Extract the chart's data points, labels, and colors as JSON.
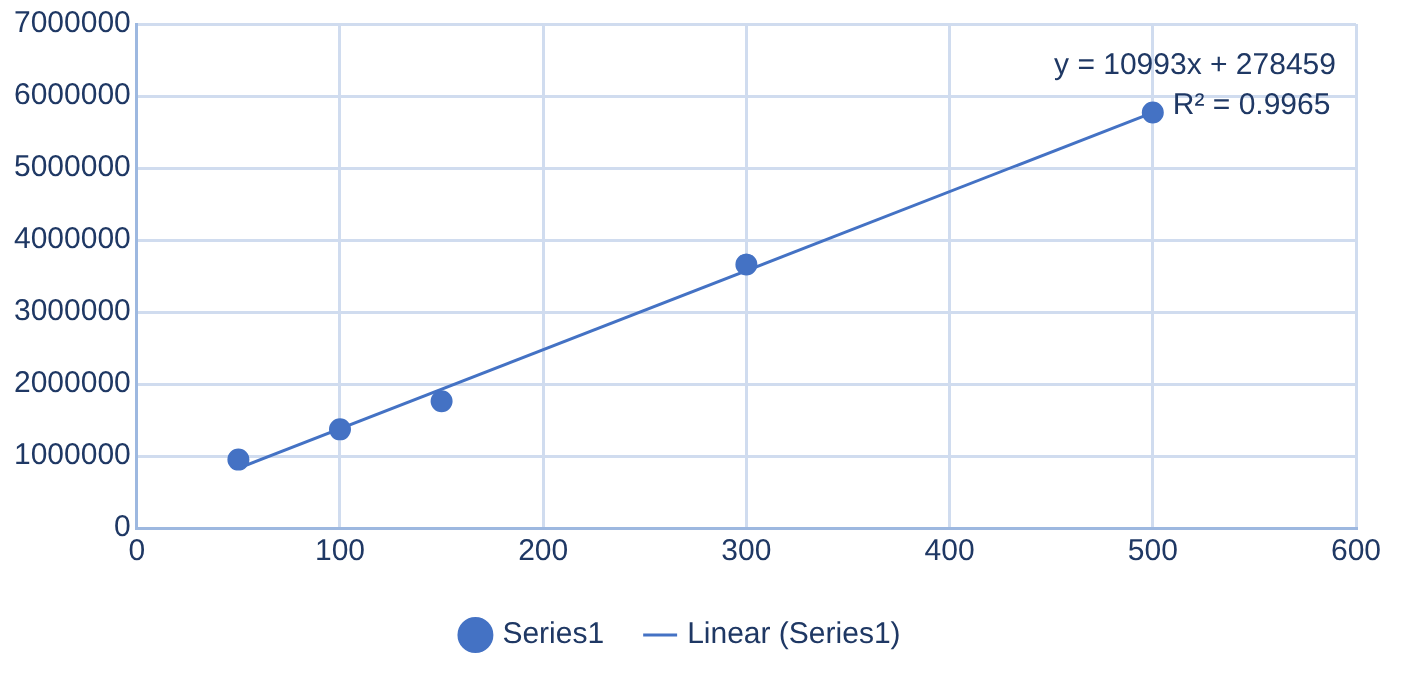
{
  "chart_data": {
    "type": "scatter",
    "series": [
      {
        "name": "Series1",
        "color": "#4472c4",
        "marker": "circle",
        "x": [
          50,
          100,
          150,
          300,
          500
        ],
        "values": [
          950000,
          1370000,
          1760000,
          3660000,
          5770000
        ]
      },
      {
        "name": "Linear (Series1)",
        "type": "line",
        "color": "#4472c4",
        "marker": "none",
        "x": [
          50,
          500
        ],
        "values": [
          830000,
          5770000
        ]
      }
    ],
    "annotations": [
      "y = 10993x + 278459",
      "R² = 0.9965"
    ],
    "xlim": [
      0,
      600
    ],
    "xticks": [
      0,
      100,
      200,
      300,
      400,
      500,
      600
    ],
    "ylim": [
      0,
      7000000
    ],
    "yticks": [
      0,
      1000000,
      2000000,
      3000000,
      4000000,
      5000000,
      6000000,
      7000000
    ],
    "grid": true,
    "legend": "bottom"
  }
}
